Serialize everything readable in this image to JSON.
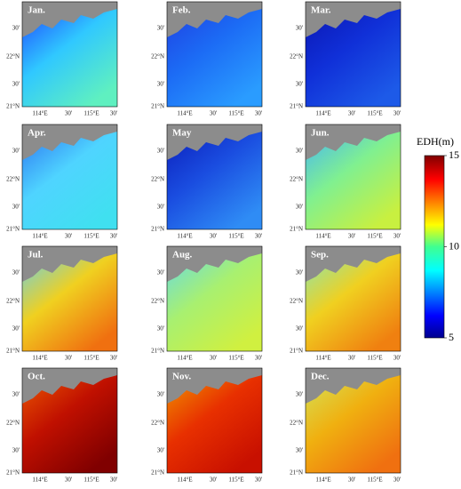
{
  "panels": [
    {
      "month": "Jan."
    },
    {
      "month": "Feb."
    },
    {
      "month": "Mar."
    },
    {
      "month": "Apr."
    },
    {
      "month": "May"
    },
    {
      "month": "Jun."
    },
    {
      "month": "Jul."
    },
    {
      "month": "Aug."
    },
    {
      "month": "Sep."
    },
    {
      "month": "Oct."
    },
    {
      "month": "Nov."
    },
    {
      "month": "Dec."
    }
  ],
  "lat_labels": [
    "30'",
    "22°N",
    "30'",
    "21°N"
  ],
  "lon_labels": [
    "114°E",
    "30'",
    "115°E",
    "30'"
  ],
  "colorbar": {
    "title": "EDH(m)",
    "range": [
      5,
      15
    ],
    "ticks": [
      5,
      10,
      15
    ]
  }
}
